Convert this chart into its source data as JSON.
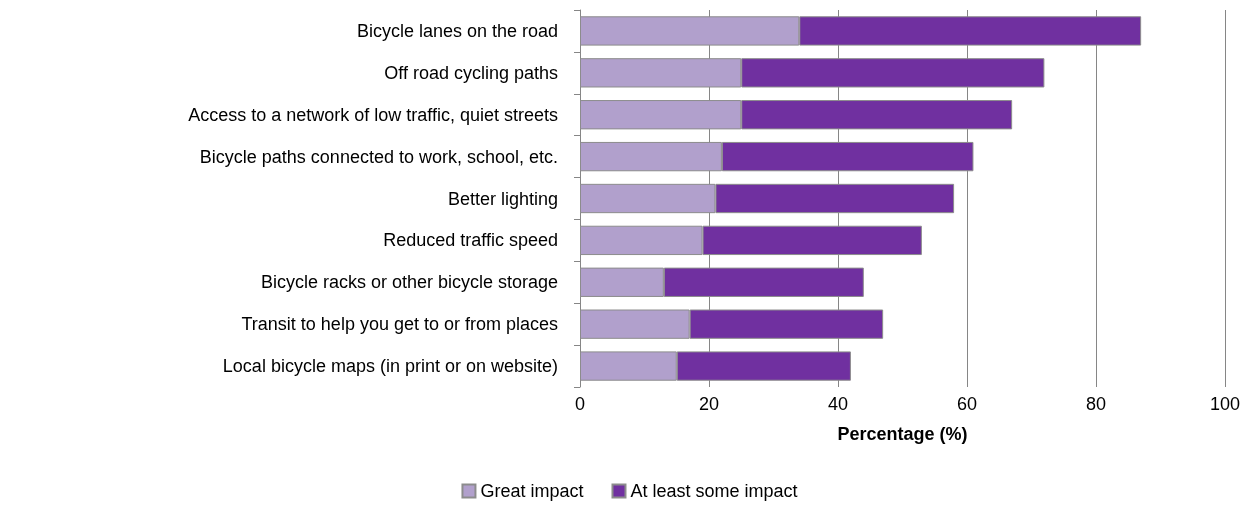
{
  "chart_data": {
    "type": "bar",
    "orientation": "horizontal",
    "stacked": true,
    "xlabel": "Percentage (%)",
    "categories": [
      "Bicycle lanes on the road",
      "Off road cycling paths",
      "Access to a network of low traffic, quiet streets",
      "Bicycle paths connected to work, school, etc.",
      "Better lighting",
      "Reduced traffic speed",
      "Bicycle racks or other bicycle storage",
      "Transit to help you get to or from places",
      "Local bicycle maps (in print or on website)"
    ],
    "series": [
      {
        "name": "Great impact",
        "color": "#b1a0cc",
        "values": [
          34,
          25,
          25,
          22,
          21,
          19,
          13,
          17,
          15
        ]
      },
      {
        "name": "At least some impact",
        "color": "#7030a0",
        "values": [
          53,
          47,
          42,
          39,
          37,
          34,
          31,
          30,
          27
        ]
      }
    ],
    "xlim": [
      0,
      100
    ],
    "xticks": [
      0,
      20,
      40,
      60,
      80,
      100
    ],
    "grid": "x",
    "legend": "bottom"
  }
}
